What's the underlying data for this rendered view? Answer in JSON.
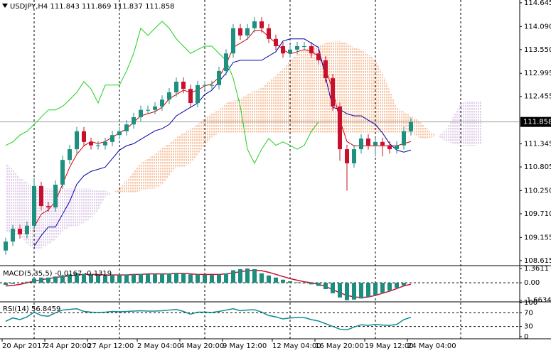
{
  "chart_data": [
    {
      "type": "candlestick",
      "title": "USDJPY,H4  111.843 111.869 111.837 111.858",
      "categories": [
        "20 Apr 2017",
        null,
        null,
        null,
        null,
        null,
        "24 Apr 20:00",
        null,
        null,
        null,
        null,
        null,
        "27 Apr 12:00",
        null,
        null,
        null,
        null,
        null,
        null,
        "2 May 04:00",
        null,
        null,
        null,
        null,
        null,
        "4 May 20:00",
        null,
        null,
        null,
        null,
        null,
        "9 May 12:00",
        null,
        null,
        null,
        null,
        null,
        null,
        "12 May 04:00",
        null,
        null,
        null,
        null,
        null,
        "16 May 20:00",
        null,
        null,
        null,
        null,
        null,
        null,
        "19 May 12:00",
        null,
        null,
        null,
        null,
        null,
        "24 May 04:00",
        null,
        null,
        null,
        null,
        null,
        null,
        null,
        null,
        null,
        null
      ],
      "open": [
        108.85,
        109.06,
        109.36,
        109.23,
        109.43,
        110.36,
        109.89,
        109.86,
        110.39,
        110.97,
        111.22,
        111.64,
        111.39,
        111.31,
        111.31,
        111.39,
        111.55,
        111.64,
        111.8,
        111.97,
        112.14,
        112.14,
        112.22,
        112.38,
        112.55,
        112.8,
        112.63,
        112.3,
        112.72,
        112.72,
        112.72,
        113.05,
        113.46,
        114.05,
        113.88,
        114.05,
        114.21,
        114.05,
        113.8,
        113.63,
        113.46,
        113.55,
        113.63,
        113.63,
        113.46,
        113.3,
        112.88,
        112.22,
        111.22,
        110.89,
        111.22,
        111.47,
        111.31,
        111.39,
        111.31,
        111.22,
        111.31,
        111.64,
        null,
        null,
        null,
        null,
        null,
        null,
        null,
        null,
        null,
        null
      ],
      "high": [
        109.15,
        109.45,
        109.46,
        109.53,
        110.55,
        110.46,
        109.99,
        110.49,
        111.07,
        111.32,
        111.74,
        111.74,
        111.49,
        111.41,
        111.49,
        111.65,
        111.74,
        111.9,
        112.07,
        112.24,
        112.24,
        112.32,
        112.48,
        112.65,
        112.9,
        112.9,
        112.73,
        112.82,
        112.82,
        112.82,
        113.15,
        113.56,
        114.15,
        114.15,
        114.15,
        114.31,
        114.31,
        114.15,
        113.9,
        113.73,
        113.65,
        113.73,
        113.73,
        113.73,
        113.56,
        113.4,
        112.98,
        112.32,
        111.32,
        111.32,
        111.57,
        111.57,
        111.49,
        111.49,
        111.41,
        111.41,
        111.74,
        111.95,
        null,
        null,
        null,
        null,
        null,
        null,
        null,
        null,
        null,
        null
      ],
      "low": [
        108.75,
        108.96,
        109.13,
        109.13,
        109.33,
        109.79,
        109.76,
        109.76,
        110.29,
        110.87,
        111.12,
        111.29,
        111.21,
        111.21,
        111.21,
        111.29,
        111.45,
        111.54,
        111.7,
        111.87,
        112.04,
        112.04,
        112.12,
        112.28,
        112.45,
        112.53,
        112.2,
        112.2,
        112.62,
        112.62,
        112.62,
        112.95,
        113.36,
        113.78,
        113.78,
        113.95,
        113.95,
        113.7,
        113.53,
        113.36,
        113.36,
        113.45,
        113.53,
        113.36,
        113.2,
        112.78,
        112.12,
        110.95,
        110.25,
        110.79,
        111.12,
        111.21,
        111.05,
        111.05,
        111.12,
        111.12,
        111.21,
        111.54,
        null,
        null,
        null,
        null,
        null,
        null,
        null,
        null,
        null,
        null
      ],
      "close": [
        109.06,
        109.36,
        109.23,
        109.43,
        110.36,
        109.89,
        109.86,
        110.39,
        110.97,
        111.22,
        111.64,
        111.39,
        111.31,
        111.31,
        111.39,
        111.55,
        111.64,
        111.8,
        111.97,
        112.14,
        112.14,
        112.22,
        112.38,
        112.55,
        112.8,
        112.63,
        112.3,
        112.72,
        112.72,
        112.72,
        113.05,
        113.46,
        114.05,
        113.88,
        114.05,
        114.21,
        114.05,
        113.8,
        113.63,
        113.46,
        113.55,
        113.63,
        113.63,
        113.46,
        113.3,
        112.88,
        112.22,
        111.22,
        110.89,
        111.22,
        111.47,
        111.31,
        111.39,
        111.31,
        111.22,
        111.31,
        111.64,
        111.858,
        null,
        null,
        null,
        null,
        null,
        null,
        null,
        null,
        null,
        null
      ],
      "up_color": "#1f8f80",
      "down_color": "#c8102e",
      "series": [
        {
          "color": "#d40000",
          "values": [
            null,
            null,
            null,
            null,
            109.4,
            109.7,
            109.8,
            110.0,
            110.4,
            110.8,
            111.1,
            111.3,
            111.4,
            111.35,
            111.4,
            111.5,
            111.6,
            111.7,
            111.85,
            112.0,
            112.05,
            112.1,
            112.2,
            112.4,
            112.5,
            112.6,
            112.55,
            112.6,
            112.7,
            112.75,
            112.9,
            113.2,
            113.6,
            113.7,
            113.8,
            114.0,
            114.0,
            113.85,
            113.7,
            113.55,
            113.45,
            113.5,
            113.55,
            113.5,
            113.4,
            113.1,
            112.6,
            111.9,
            111.4,
            111.3,
            111.3,
            111.3,
            111.3,
            111.3,
            111.3,
            111.3,
            111.35,
            111.4,
            null,
            null,
            null,
            null,
            null,
            null,
            null,
            null,
            null,
            null
          ]
        },
        {
          "color": "#0000a8",
          "values": [
            null,
            null,
            null,
            null,
            108.95,
            109.2,
            109.4,
            109.4,
            109.7,
            110.0,
            110.4,
            110.6,
            110.7,
            110.75,
            110.8,
            111.0,
            111.2,
            111.3,
            111.35,
            111.45,
            111.55,
            111.65,
            111.7,
            111.8,
            112.0,
            112.1,
            112.2,
            112.3,
            112.5,
            112.6,
            112.8,
            113.0,
            113.25,
            113.3,
            113.3,
            113.3,
            113.3,
            113.4,
            113.5,
            113.75,
            113.8,
            113.8,
            113.8,
            113.7,
            113.6,
            112.9,
            112.2,
            112.15,
            112.05,
            112.0,
            112.0,
            111.9,
            111.8,
            111.6,
            111.35,
            111.2,
            111.15,
            111.2,
            null,
            null,
            null,
            null,
            null,
            null,
            null,
            null,
            null,
            null
          ]
        },
        {
          "color": "#1ed01e",
          "values": [
            111.31,
            111.39,
            111.55,
            111.64,
            111.8,
            111.97,
            112.14,
            112.14,
            112.22,
            112.38,
            112.55,
            112.8,
            112.63,
            112.3,
            112.72,
            112.72,
            112.72,
            113.05,
            113.46,
            114.05,
            113.88,
            114.05,
            114.21,
            114.05,
            113.8,
            113.63,
            113.46,
            113.55,
            113.63,
            113.63,
            113.46,
            113.3,
            112.88,
            112.22,
            111.22,
            110.89,
            111.22,
            111.47,
            111.31,
            111.39,
            111.31,
            111.22,
            111.31,
            111.64,
            111.858,
            null,
            null,
            null,
            null,
            null,
            null,
            null,
            null,
            null,
            null,
            null,
            null,
            null,
            null,
            null,
            null,
            null,
            null,
            null,
            null,
            null,
            null,
            null
          ]
        }
      ],
      "cloud": {
        "up_color": "#ef8d4c",
        "down_color": "#c6a3d6",
        "span_a": [
          109.3,
          109.25,
          109.2,
          109.0,
          108.9,
          108.9,
          109.0,
          109.1,
          109.3,
          109.4,
          109.4,
          109.5,
          109.6,
          109.8,
          110.1,
          110.2,
          110.3,
          110.5,
          110.7,
          110.9,
          111.0,
          111.1,
          111.25,
          111.35,
          111.5,
          111.6,
          111.7,
          111.8,
          111.95,
          112.05,
          112.15,
          112.3,
          112.35,
          112.4,
          112.5,
          112.6,
          112.65,
          112.8,
          112.95,
          113.1,
          113.3,
          113.45,
          113.55,
          113.6,
          113.65,
          113.7,
          113.75,
          113.75,
          113.7,
          113.6,
          113.55,
          113.45,
          113.3,
          113.0,
          112.6,
          112.2,
          112.1,
          112.0,
          111.9,
          111.75,
          111.6,
          111.5,
          111.4,
          111.35,
          111.3,
          111.3,
          111.3,
          111.35
        ],
        "span_b": [
          110.9,
          110.75,
          110.55,
          110.45,
          110.3,
          110.3,
          110.3,
          110.3,
          110.3,
          110.3,
          110.3,
          110.3,
          110.3,
          110.25,
          110.25,
          110.2,
          110.2,
          110.2,
          110.2,
          110.25,
          110.3,
          110.3,
          110.4,
          110.6,
          110.8,
          110.8,
          110.9,
          111.1,
          111.3,
          111.5,
          111.6,
          111.6,
          111.6,
          111.6,
          111.6,
          111.6,
          111.6,
          111.6,
          111.6,
          111.6,
          111.6,
          111.6,
          111.6,
          111.6,
          111.6,
          111.6,
          111.6,
          111.6,
          111.6,
          111.6,
          111.6,
          111.6,
          111.6,
          111.6,
          111.6,
          111.6,
          111.6,
          111.6,
          111.5,
          111.45,
          111.5,
          111.55,
          111.7,
          112.0,
          112.3,
          112.35,
          112.35,
          112.35
        ]
      },
      "current_price": 111.858,
      "ylim": [
        108.53,
        114.71
      ],
      "yticks": [
        114.645,
        {
          "value": 114.09,
          "label": "114.090"
        },
        {
          "value": 113.55,
          "label": "113.550"
        },
        112.995,
        112.455,
        111.345,
        110.805,
        {
          "value": 110.25,
          "label": "110.250"
        },
        {
          "value": 109.71,
          "label": "109.710"
        },
        109.155,
        108.615
      ]
    },
    {
      "type": "macd",
      "title": "MACD(5,35,5) -0.0167 -0.1319",
      "color": "#1e8c7e",
      "values": [
        -0.2,
        -0.1,
        0.0,
        0.1,
        0.4,
        0.5,
        0.5,
        0.6,
        0.7,
        0.8,
        0.9,
        0.85,
        0.8,
        0.75,
        0.7,
        0.75,
        0.75,
        0.8,
        0.8,
        0.85,
        0.85,
        0.85,
        0.85,
        0.9,
        0.95,
        0.9,
        0.8,
        0.8,
        0.75,
        0.75,
        0.8,
        0.9,
        1.2,
        1.3,
        1.36,
        1.3,
        0.9,
        0.7,
        0.5,
        0.3,
        0.15,
        0.05,
        -0.05,
        -0.15,
        -0.3,
        -0.6,
        -1.0,
        -1.4,
        -1.66,
        -1.6,
        -1.5,
        -1.35,
        -1.15,
        -0.95,
        -0.75,
        -0.5,
        -0.25,
        -0.0167
      ],
      "signal": {
        "color": "#c8102e",
        "values": [
          -0.3,
          -0.25,
          -0.15,
          0.0,
          0.15,
          0.3,
          0.4,
          0.5,
          0.6,
          0.65,
          0.75,
          0.8,
          0.8,
          0.8,
          0.75,
          0.75,
          0.75,
          0.75,
          0.8,
          0.8,
          0.85,
          0.85,
          0.85,
          0.85,
          0.9,
          0.9,
          0.85,
          0.8,
          0.8,
          0.8,
          0.8,
          0.85,
          0.95,
          1.05,
          1.15,
          1.2,
          1.15,
          1.0,
          0.8,
          0.6,
          0.4,
          0.25,
          0.1,
          0.0,
          -0.15,
          -0.35,
          -0.65,
          -0.95,
          -1.2,
          -1.35,
          -1.4,
          -1.35,
          -1.2,
          -1.0,
          -0.8,
          -0.55,
          -0.3,
          -0.1319
        ]
      },
      "ylim": [
        -1.75,
        1.5
      ],
      "yticks": [
        1.3611,
        {
          "value": 0,
          "label": "0.00"
        },
        -1.6634
      ],
      "levels": [
        0
      ]
    },
    {
      "type": "line",
      "title": "RSI(14) 56.8459",
      "color": "#0f8b8d",
      "values": [
        45,
        55,
        50,
        58,
        72,
        62,
        60,
        70,
        78,
        80,
        82,
        74,
        72,
        71,
        72,
        74,
        73,
        74,
        75,
        76,
        75,
        75,
        76,
        78,
        80,
        74,
        66,
        72,
        72,
        71,
        74,
        78,
        82,
        76,
        78,
        79,
        72,
        62,
        58,
        52,
        55,
        56,
        56,
        50,
        46,
        38,
        30,
        22,
        20,
        28,
        35,
        33,
        36,
        34,
        33,
        36,
        50,
        56.8459
      ],
      "ylim": [
        0,
        100
      ],
      "yticks": [
        100,
        70,
        30,
        0
      ],
      "levels": [
        70,
        30
      ]
    }
  ]
}
